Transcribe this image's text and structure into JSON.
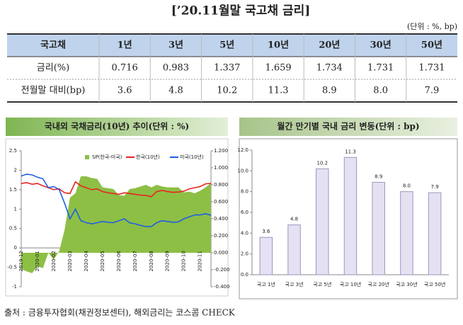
{
  "title": "[’20.11월말 국고채 금리]",
  "unit": "(단위 : %, bp)",
  "table": {
    "header": [
      "국고채",
      "1년",
      "3년",
      "5년",
      "10년",
      "20년",
      "30년",
      "50년"
    ],
    "rows": [
      [
        "금리(%)",
        "0.716",
        "0.983",
        "1.337",
        "1.659",
        "1.734",
        "1.731",
        "1.731"
      ],
      [
        "전월말 대비(bp)",
        "3.6",
        "4.8",
        "10.2",
        "11.3",
        "8.9",
        "8.0",
        "7.9"
      ]
    ]
  },
  "chart_data": [
    {
      "type": "line",
      "title": "국내외 국채금리(10년) 추이(단위 : %)",
      "categories": [
        "2019-12",
        null,
        null,
        "2020-01",
        null,
        null,
        "2020-02",
        null,
        null,
        "2020-03",
        null,
        null,
        "2020-04",
        null,
        null,
        "2020-05",
        null,
        null,
        "2020-06",
        null,
        null,
        "2020-07",
        null,
        null,
        "2020-08",
        null,
        null,
        "2020-09",
        null,
        null,
        "2020-10",
        null,
        null,
        "2020-11",
        null,
        null
      ],
      "series": [
        {
          "name": "SP(한국-미국)",
          "color": "#8dbf45",
          "axis": "y2",
          "kind": "area",
          "values": [
            -0.19,
            -0.22,
            -0.24,
            -0.16,
            -0.18,
            0.0,
            -0.08,
            0.02,
            0.27,
            0.65,
            0.7,
            0.9,
            0.9,
            0.88,
            0.87,
            0.77,
            0.76,
            0.75,
            0.68,
            0.67,
            0.75,
            0.76,
            0.78,
            0.8,
            0.77,
            0.8,
            0.78,
            0.77,
            0.77,
            0.77,
            0.71,
            0.72,
            0.7,
            0.73,
            0.77,
            0.82
          ]
        },
        {
          "name": "한국(10년)",
          "color": "#e8261f",
          "values": [
            1.66,
            1.68,
            1.64,
            1.66,
            1.6,
            1.55,
            1.5,
            1.52,
            1.42,
            1.4,
            1.7,
            1.6,
            1.55,
            1.5,
            1.52,
            1.45,
            1.42,
            1.4,
            1.38,
            1.42,
            1.4,
            1.38,
            1.36,
            1.35,
            1.32,
            1.45,
            1.48,
            1.45,
            1.43,
            1.44,
            1.46,
            1.52,
            1.55,
            1.58,
            1.65,
            1.66
          ]
        },
        {
          "name": "미국(10년)",
          "color": "#1f5fe0",
          "values": [
            1.85,
            1.9,
            1.88,
            1.82,
            1.78,
            1.55,
            1.58,
            1.5,
            1.15,
            0.75,
            1.0,
            0.7,
            0.65,
            0.62,
            0.65,
            0.68,
            0.66,
            0.65,
            0.7,
            0.75,
            0.65,
            0.62,
            0.58,
            0.55,
            0.55,
            0.65,
            0.7,
            0.68,
            0.66,
            0.67,
            0.75,
            0.8,
            0.85,
            0.85,
            0.88,
            0.84
          ]
        }
      ],
      "ylim": [
        -1,
        2.5
      ],
      "yticks": [
        2.5,
        2,
        1.5,
        1,
        0.5,
        0,
        -0.5,
        -1
      ],
      "y2lim": [
        -0.4,
        1.2
      ],
      "y2ticks": [
        {
          "value": 1.2,
          "label": "1.200"
        },
        {
          "value": 1.0,
          "label": "1.000"
        },
        {
          "value": 0.8,
          "label": "0.800"
        },
        {
          "value": 0.6,
          "label": "0.600"
        },
        {
          "value": 0.4,
          "label": "0.400"
        },
        {
          "value": 0.2,
          "label": "0.200"
        },
        {
          "value": 0,
          "label": "0.000"
        },
        {
          "value": -0.2,
          "label": "-0.200"
        },
        {
          "value": -0.4,
          "label": "-0.400"
        }
      ],
      "grid": false,
      "legend": "top"
    },
    {
      "type": "bar",
      "title": "월간 만기별 국내 금리 변동(단위 : bp)",
      "categories": [
        "국고 1년",
        "국고 3년",
        "국고 5년",
        "국고 10년",
        "국고 20년",
        "국고 30년",
        "국고 50년"
      ],
      "values": [
        3.6,
        4.8,
        10.2,
        11.3,
        8.9,
        8.0,
        7.9
      ],
      "value_labels": [
        "3.6",
        "4.8",
        "10.2",
        "11.3",
        "8.9",
        "8.0",
        "7.9"
      ],
      "color": "#e6e1f2",
      "ylim": [
        0,
        12
      ],
      "yticks": [
        {
          "value": 0,
          "label": "0.0"
        },
        {
          "value": 2,
          "label": "2.0"
        },
        {
          "value": 4,
          "label": "4.0"
        },
        {
          "value": 6,
          "label": "6.0"
        },
        {
          "value": 8,
          "label": "8.0"
        },
        {
          "value": 10,
          "label": "10.0"
        },
        {
          "value": 12,
          "label": "12.0"
        }
      ],
      "grid": false
    }
  ],
  "source": "출처 : 금융투자협회(채권정보센터), 해외금리는 코스콤 CHECK"
}
